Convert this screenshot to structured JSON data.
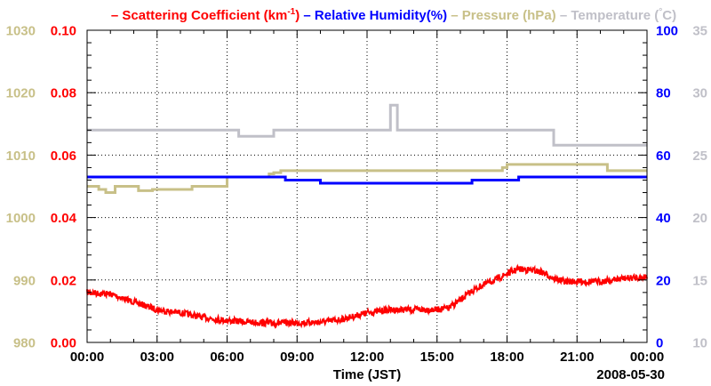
{
  "chart_data": {
    "type": "line",
    "xlabel": "Time (JST)",
    "date_label": "2008-05-30",
    "x_ticks": [
      "00:00",
      "03:00",
      "06:00",
      "09:00",
      "12:00",
      "15:00",
      "18:00",
      "21:00",
      "00:00"
    ],
    "xlim_hours": [
      0,
      24
    ],
    "grid": true,
    "legend_position": "top",
    "legend": [
      {
        "key": "scattering",
        "prefix": "– ",
        "text": "Scattering Coefficient (km",
        "sup": "-1",
        "suffix": ")",
        "color": "#ff0000"
      },
      {
        "key": "humidity",
        "prefix": " – ",
        "text": "Relative Humidity(%)",
        "sup": "",
        "suffix": "",
        "color": "#0000ff"
      },
      {
        "key": "pressure",
        "prefix": " – ",
        "text": "Pressure (hPa)",
        "sup": "",
        "suffix": "",
        "color": "#c8c088"
      },
      {
        "key": "temperature",
        "prefix": " – ",
        "text": "Temperature (",
        "sup": "°",
        "suffix": "C)",
        "color": "#c0c0c8"
      }
    ],
    "axes": {
      "pressure": {
        "side": "left-outer",
        "ticks": [
          "980",
          "990",
          "1000",
          "1010",
          "1020",
          "1030"
        ],
        "ylim": [
          980,
          1030
        ],
        "color": "#c8c088"
      },
      "scattering": {
        "side": "left-inner",
        "ticks": [
          "0.00",
          "0.02",
          "0.04",
          "0.06",
          "0.08",
          "0.10"
        ],
        "ylim": [
          0,
          0.1
        ],
        "color": "#ff0000"
      },
      "humidity": {
        "side": "right-inner",
        "ticks": [
          "0",
          "20",
          "40",
          "60",
          "80",
          "100"
        ],
        "ylim": [
          0,
          100
        ],
        "color": "#0000ff"
      },
      "temperature": {
        "side": "right-outer",
        "ticks": [
          "10",
          "15",
          "20",
          "25",
          "30",
          "35"
        ],
        "ylim": [
          10,
          35
        ],
        "color": "#c0c0c8"
      }
    },
    "series": [
      {
        "key": "pressure",
        "color": "#c8c088",
        "style": "step",
        "x": [
          0,
          0.5,
          0.8,
          1.2,
          2.2,
          2.8,
          4.5,
          6.0,
          7.8,
          8.0,
          8.3,
          10.0,
          12.0,
          13.0,
          14.0,
          16.0,
          17.8,
          18.0,
          20.0,
          22.0,
          22.3,
          22.7,
          24
        ],
        "y": [
          1005,
          1004.5,
          1004.0,
          1005,
          1004.3,
          1004.5,
          1005,
          1006.5,
          1007,
          1007.2,
          1007.5,
          1007.5,
          1007.5,
          1007.5,
          1007.5,
          1007.5,
          1008,
          1008.5,
          1008.5,
          1008.5,
          1007.5,
          1007.5,
          1007.5
        ]
      },
      {
        "key": "temperature",
        "color": "#c0c0c8",
        "style": "step",
        "x": [
          0,
          1.0,
          2.0,
          3.0,
          6.0,
          6.5,
          8.0,
          9.0,
          12.0,
          13.0,
          13.3,
          15.0,
          18.0,
          19.5,
          20.0,
          24
        ],
        "y": [
          27.0,
          27.0,
          27.0,
          27.0,
          27.0,
          26.5,
          27.0,
          27.0,
          27.0,
          29.0,
          27.0,
          27.0,
          27.0,
          27.0,
          25.8,
          25.8
        ]
      },
      {
        "key": "humidity",
        "color": "#0000ff",
        "style": "step",
        "x": [
          0,
          8.3,
          8.5,
          10.0,
          16.3,
          16.5,
          18.0,
          18.5,
          19.0,
          20.5,
          24
        ],
        "y": [
          53,
          53,
          52,
          51,
          51,
          52,
          52,
          53,
          53,
          53,
          53
        ]
      },
      {
        "key": "scattering",
        "color": "#ff0000",
        "style": "noisy",
        "x": [
          0,
          1,
          2,
          3,
          4,
          5,
          6,
          7,
          8,
          9,
          10,
          11,
          12,
          13,
          14,
          15,
          15.5,
          16,
          16.5,
          17,
          17.5,
          18,
          18.5,
          19,
          19.5,
          20,
          20.5,
          21,
          22,
          23,
          24
        ],
        "y": [
          0.016,
          0.0155,
          0.013,
          0.0105,
          0.0095,
          0.008,
          0.007,
          0.0065,
          0.0062,
          0.0063,
          0.0065,
          0.0075,
          0.0095,
          0.0105,
          0.0105,
          0.0105,
          0.011,
          0.0135,
          0.0165,
          0.0185,
          0.02,
          0.022,
          0.0235,
          0.0232,
          0.0225,
          0.0205,
          0.0195,
          0.0195,
          0.0195,
          0.0205,
          0.021
        ]
      }
    ]
  }
}
